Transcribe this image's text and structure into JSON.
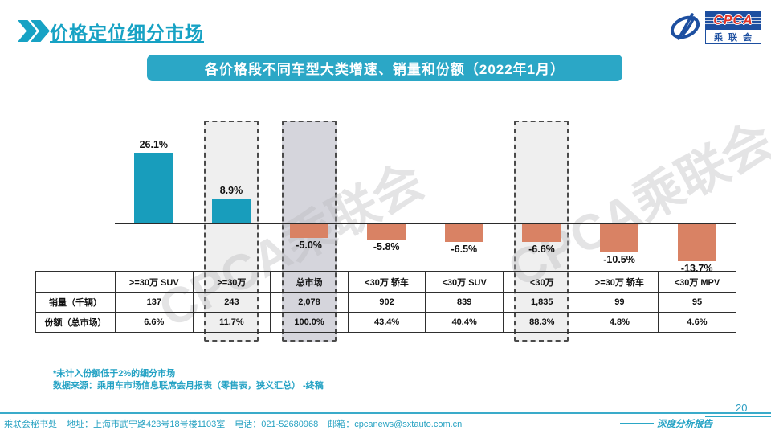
{
  "header": {
    "title": "价格定位细分市场"
  },
  "logo": {
    "cpca": "CPCA",
    "name_cn": "乘联会"
  },
  "banner": {
    "title": "各价格段不同车型大类增速、销量和份额（2022年1月）"
  },
  "chart_data": {
    "type": "bar",
    "categories": [
      ">=30万 SUV",
      ">=30万",
      "总市场",
      "<30万 轿车",
      "<30万 SUV",
      "<30万",
      ">=30万 轿车",
      "<30万 MPV"
    ],
    "values": [
      26.1,
      8.9,
      -5.0,
      -5.8,
      -6.5,
      -6.6,
      -10.5,
      -13.7
    ],
    "data_labels": [
      "26.1%",
      "8.9%",
      "-5.0%",
      "-5.8%",
      "-6.5%",
      "-6.6%",
      "-10.5%",
      "-13.7%"
    ],
    "highlighted_categories": [
      ">=30万",
      "总市场",
      "<30万"
    ],
    "highlight_column_indexes": [
      1,
      2,
      5
    ],
    "highlight_fill_colors": [
      "#efefef",
      "#d5d5dc",
      "#efefef"
    ],
    "positive_bar_color": "#189dbc",
    "negative_bar_color": "#d98264",
    "ylim": [
      -16,
      28
    ],
    "grid": false,
    "legend": false,
    "title": "各价格段不同车型大类增速、销量和份额（2022年1月）"
  },
  "table": {
    "corner": "",
    "row_headers": [
      "销量（千辆）",
      "份额（总市场）"
    ],
    "column_headers": [
      ">=30万 SUV",
      ">=30万",
      "总市场",
      "<30万 轿车",
      "<30万 SUV",
      "<30万",
      ">=30万 轿车",
      "<30万 MPV"
    ],
    "rows": [
      [
        "137",
        "243",
        "2,078",
        "902",
        "839",
        "1,835",
        "99",
        "95"
      ],
      [
        "6.6%",
        "11.7%",
        "100.0%",
        "43.4%",
        "40.4%",
        "88.3%",
        "4.8%",
        "4.6%"
      ]
    ]
  },
  "footnotes": {
    "line1": "*未计入份额低于2%的细分市场",
    "line2": "数据来源：乘用车市场信息联席会月报表（零售表，狭义汇总） -终稿"
  },
  "footer": {
    "secretariat": "乘联会秘书处",
    "address": "地址：上海市武宁路423号18号楼1103室",
    "phone": "电话：021-52680968",
    "email": "邮箱：cpcanews@sxtauto.com.cn",
    "report_type": "深度分析报告",
    "page_number": "20"
  },
  "watermark": {
    "text": "CPCA乘联会"
  }
}
